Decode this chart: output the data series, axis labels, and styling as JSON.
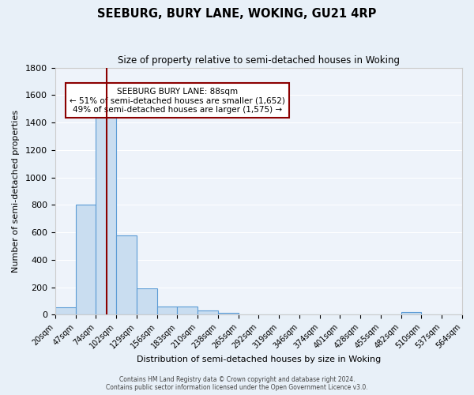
{
  "title": "SEEBURG, BURY LANE, WOKING, GU21 4RP",
  "subtitle": "Size of property relative to semi-detached houses in Woking",
  "xlabel": "Distribution of semi-detached houses by size in Woking",
  "ylabel": "Number of semi-detached properties",
  "bar_values": [
    55,
    800,
    1490,
    575,
    190,
    60,
    60,
    30,
    15,
    0,
    0,
    0,
    0,
    0,
    0,
    0,
    0,
    20,
    0,
    0
  ],
  "bin_edges": [
    20,
    47,
    74,
    101,
    128,
    155,
    182,
    209,
    236,
    263,
    290,
    317,
    344,
    371,
    398,
    425,
    452,
    479,
    506,
    533,
    560
  ],
  "tick_labels": [
    "20sqm",
    "47sqm",
    "74sqm",
    "102sqm",
    "129sqm",
    "156sqm",
    "183sqm",
    "210sqm",
    "238sqm",
    "265sqm",
    "292sqm",
    "319sqm",
    "346sqm",
    "374sqm",
    "401sqm",
    "428sqm",
    "455sqm",
    "482sqm",
    "510sqm",
    "537sqm",
    "564sqm"
  ],
  "bar_color": "#c9ddf0",
  "bar_edge_color": "#5b9bd5",
  "vline_x": 88,
  "vline_color": "#8b0000",
  "ylim": [
    0,
    1800
  ],
  "yticks": [
    0,
    200,
    400,
    600,
    800,
    1000,
    1200,
    1400,
    1600,
    1800
  ],
  "annotation_title": "SEEBURG BURY LANE: 88sqm",
  "annotation_line1": "← 51% of semi-detached houses are smaller (1,652)",
  "annotation_line2": "49% of semi-detached houses are larger (1,575) →",
  "annotation_box_color": "#ffffff",
  "annotation_box_edge": "#8b0000",
  "footer1": "Contains HM Land Registry data © Crown copyright and database right 2024.",
  "footer2": "Contains public sector information licensed under the Open Government Licence v3.0.",
  "background_color": "#e8f0f8",
  "plot_bg_color": "#eef3fa"
}
